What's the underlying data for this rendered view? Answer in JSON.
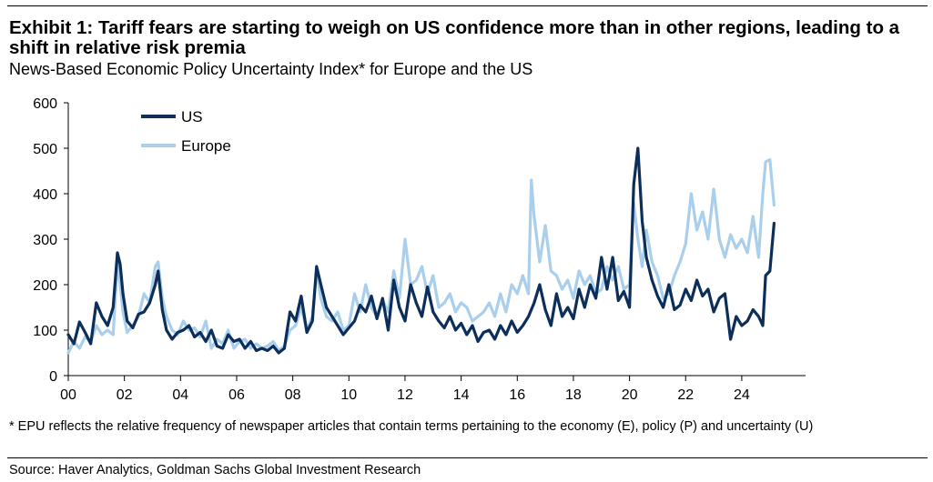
{
  "header": {
    "title": "Exhibit 1: Tariff fears are starting to weigh on US confidence more than in other regions, leading to a shift in relative risk premia",
    "subtitle": "News-Based Economic Policy Uncertainty Index* for Europe and the US"
  },
  "footer": {
    "note": "* EPU reflects the relative frequency of newspaper articles that contain terms pertaining to the economy (E), policy (P) and uncertainty (U)",
    "source": "Source: Haver Analytics, Goldman Sachs Global Investment Research"
  },
  "chart_data": {
    "type": "line",
    "ylim": [
      0,
      600
    ],
    "yticks": [
      "0",
      "100",
      "200",
      "300",
      "400",
      "500",
      "600"
    ],
    "xlim": [
      2000,
      2025.3
    ],
    "xticks": [
      "00",
      "02",
      "04",
      "06",
      "08",
      "10",
      "12",
      "14",
      "16",
      "18",
      "20",
      "22",
      "24"
    ],
    "legend_position": "top-left",
    "grid": false,
    "colors": {
      "US": "#0b2e5b",
      "Europe": "#a9cfec"
    },
    "series": [
      {
        "name": "US",
        "points": [
          [
            2000.0,
            90
          ],
          [
            2000.2,
            70
          ],
          [
            2000.4,
            118
          ],
          [
            2000.6,
            95
          ],
          [
            2000.8,
            70
          ],
          [
            2001.0,
            160
          ],
          [
            2001.2,
            130
          ],
          [
            2001.4,
            110
          ],
          [
            2001.6,
            150
          ],
          [
            2001.75,
            270
          ],
          [
            2001.85,
            245
          ],
          [
            2001.95,
            180
          ],
          [
            2002.1,
            120
          ],
          [
            2002.3,
            105
          ],
          [
            2002.5,
            135
          ],
          [
            2002.7,
            140
          ],
          [
            2002.9,
            160
          ],
          [
            2003.1,
            200
          ],
          [
            2003.2,
            230
          ],
          [
            2003.35,
            145
          ],
          [
            2003.5,
            100
          ],
          [
            2003.7,
            80
          ],
          [
            2003.9,
            95
          ],
          [
            2004.1,
            100
          ],
          [
            2004.3,
            110
          ],
          [
            2004.5,
            85
          ],
          [
            2004.7,
            95
          ],
          [
            2004.9,
            75
          ],
          [
            2005.1,
            100
          ],
          [
            2005.3,
            65
          ],
          [
            2005.5,
            60
          ],
          [
            2005.7,
            90
          ],
          [
            2005.9,
            75
          ],
          [
            2006.1,
            80
          ],
          [
            2006.3,
            60
          ],
          [
            2006.5,
            75
          ],
          [
            2006.7,
            55
          ],
          [
            2006.9,
            60
          ],
          [
            2007.1,
            55
          ],
          [
            2007.3,
            65
          ],
          [
            2007.5,
            50
          ],
          [
            2007.7,
            60
          ],
          [
            2007.9,
            140
          ],
          [
            2008.1,
            120
          ],
          [
            2008.3,
            175
          ],
          [
            2008.5,
            95
          ],
          [
            2008.7,
            120
          ],
          [
            2008.85,
            240
          ],
          [
            2009.0,
            200
          ],
          [
            2009.2,
            150
          ],
          [
            2009.4,
            130
          ],
          [
            2009.6,
            110
          ],
          [
            2009.8,
            90
          ],
          [
            2010.0,
            105
          ],
          [
            2010.2,
            120
          ],
          [
            2010.4,
            155
          ],
          [
            2010.6,
            140
          ],
          [
            2010.8,
            175
          ],
          [
            2011.0,
            125
          ],
          [
            2011.2,
            170
          ],
          [
            2011.4,
            100
          ],
          [
            2011.6,
            210
          ],
          [
            2011.8,
            150
          ],
          [
            2012.0,
            120
          ],
          [
            2012.2,
            200
          ],
          [
            2012.4,
            160
          ],
          [
            2012.6,
            130
          ],
          [
            2012.8,
            195
          ],
          [
            2013.0,
            140
          ],
          [
            2013.2,
            120
          ],
          [
            2013.4,
            105
          ],
          [
            2013.6,
            130
          ],
          [
            2013.8,
            100
          ],
          [
            2014.0,
            115
          ],
          [
            2014.2,
            90
          ],
          [
            2014.4,
            110
          ],
          [
            2014.6,
            75
          ],
          [
            2014.8,
            95
          ],
          [
            2015.0,
            100
          ],
          [
            2015.2,
            80
          ],
          [
            2015.4,
            110
          ],
          [
            2015.6,
            90
          ],
          [
            2015.8,
            120
          ],
          [
            2016.0,
            95
          ],
          [
            2016.2,
            110
          ],
          [
            2016.4,
            130
          ],
          [
            2016.6,
            160
          ],
          [
            2016.8,
            200
          ],
          [
            2017.0,
            145
          ],
          [
            2017.2,
            110
          ],
          [
            2017.4,
            180
          ],
          [
            2017.6,
            130
          ],
          [
            2017.8,
            150
          ],
          [
            2018.0,
            125
          ],
          [
            2018.2,
            190
          ],
          [
            2018.4,
            150
          ],
          [
            2018.6,
            200
          ],
          [
            2018.8,
            170
          ],
          [
            2019.0,
            260
          ],
          [
            2019.2,
            190
          ],
          [
            2019.4,
            260
          ],
          [
            2019.6,
            165
          ],
          [
            2019.8,
            185
          ],
          [
            2020.0,
            150
          ],
          [
            2020.15,
            420
          ],
          [
            2020.3,
            500
          ],
          [
            2020.45,
            340
          ],
          [
            2020.6,
            260
          ],
          [
            2020.8,
            210
          ],
          [
            2021.0,
            175
          ],
          [
            2021.2,
            150
          ],
          [
            2021.4,
            200
          ],
          [
            2021.6,
            145
          ],
          [
            2021.8,
            155
          ],
          [
            2022.0,
            190
          ],
          [
            2022.2,
            165
          ],
          [
            2022.4,
            210
          ],
          [
            2022.6,
            175
          ],
          [
            2022.8,
            190
          ],
          [
            2023.0,
            140
          ],
          [
            2023.2,
            170
          ],
          [
            2023.4,
            180
          ],
          [
            2023.6,
            80
          ],
          [
            2023.8,
            130
          ],
          [
            2024.0,
            110
          ],
          [
            2024.2,
            120
          ],
          [
            2024.4,
            145
          ],
          [
            2024.6,
            130
          ],
          [
            2024.75,
            110
          ],
          [
            2024.85,
            220
          ],
          [
            2025.0,
            230
          ],
          [
            2025.15,
            335
          ]
        ]
      },
      {
        "name": "Europe",
        "points": [
          [
            2000.0,
            50
          ],
          [
            2000.2,
            75
          ],
          [
            2000.4,
            60
          ],
          [
            2000.6,
            85
          ],
          [
            2000.8,
            75
          ],
          [
            2001.0,
            110
          ],
          [
            2001.2,
            90
          ],
          [
            2001.4,
            100
          ],
          [
            2001.6,
            90
          ],
          [
            2001.75,
            250
          ],
          [
            2001.85,
            200
          ],
          [
            2001.95,
            140
          ],
          [
            2002.1,
            95
          ],
          [
            2002.3,
            110
          ],
          [
            2002.5,
            130
          ],
          [
            2002.7,
            180
          ],
          [
            2002.9,
            160
          ],
          [
            2003.1,
            240
          ],
          [
            2003.2,
            250
          ],
          [
            2003.35,
            170
          ],
          [
            2003.5,
            130
          ],
          [
            2003.7,
            100
          ],
          [
            2003.9,
            90
          ],
          [
            2004.1,
            120
          ],
          [
            2004.3,
            100
          ],
          [
            2004.5,
            105
          ],
          [
            2004.7,
            85
          ],
          [
            2004.9,
            120
          ],
          [
            2005.1,
            60
          ],
          [
            2005.3,
            80
          ],
          [
            2005.5,
            70
          ],
          [
            2005.7,
            100
          ],
          [
            2005.9,
            60
          ],
          [
            2006.1,
            75
          ],
          [
            2006.3,
            80
          ],
          [
            2006.5,
            60
          ],
          [
            2006.7,
            70
          ],
          [
            2006.9,
            60
          ],
          [
            2007.1,
            65
          ],
          [
            2007.3,
            75
          ],
          [
            2007.5,
            55
          ],
          [
            2007.7,
            65
          ],
          [
            2007.9,
            100
          ],
          [
            2008.1,
            110
          ],
          [
            2008.3,
            150
          ],
          [
            2008.5,
            100
          ],
          [
            2008.7,
            130
          ],
          [
            2008.85,
            230
          ],
          [
            2009.0,
            170
          ],
          [
            2009.2,
            130
          ],
          [
            2009.4,
            120
          ],
          [
            2009.6,
            140
          ],
          [
            2009.8,
            100
          ],
          [
            2010.0,
            110
          ],
          [
            2010.2,
            180
          ],
          [
            2010.4,
            140
          ],
          [
            2010.6,
            200
          ],
          [
            2010.8,
            150
          ],
          [
            2011.0,
            130
          ],
          [
            2011.2,
            165
          ],
          [
            2011.4,
            140
          ],
          [
            2011.6,
            230
          ],
          [
            2011.8,
            170
          ],
          [
            2012.0,
            300
          ],
          [
            2012.2,
            200
          ],
          [
            2012.4,
            210
          ],
          [
            2012.6,
            240
          ],
          [
            2012.8,
            180
          ],
          [
            2013.0,
            220
          ],
          [
            2013.2,
            150
          ],
          [
            2013.4,
            160
          ],
          [
            2013.6,
            180
          ],
          [
            2013.8,
            140
          ],
          [
            2014.0,
            160
          ],
          [
            2014.2,
            150
          ],
          [
            2014.4,
            120
          ],
          [
            2014.6,
            130
          ],
          [
            2014.8,
            140
          ],
          [
            2015.0,
            160
          ],
          [
            2015.2,
            130
          ],
          [
            2015.4,
            180
          ],
          [
            2015.6,
            140
          ],
          [
            2015.8,
            200
          ],
          [
            2016.0,
            180
          ],
          [
            2016.2,
            220
          ],
          [
            2016.4,
            180
          ],
          [
            2016.5,
            430
          ],
          [
            2016.6,
            350
          ],
          [
            2016.8,
            250
          ],
          [
            2017.0,
            330
          ],
          [
            2017.2,
            230
          ],
          [
            2017.4,
            220
          ],
          [
            2017.6,
            190
          ],
          [
            2017.8,
            210
          ],
          [
            2018.0,
            170
          ],
          [
            2018.2,
            230
          ],
          [
            2018.4,
            200
          ],
          [
            2018.6,
            220
          ],
          [
            2018.8,
            180
          ],
          [
            2019.0,
            190
          ],
          [
            2019.2,
            240
          ],
          [
            2019.4,
            210
          ],
          [
            2019.6,
            240
          ],
          [
            2019.8,
            190
          ],
          [
            2020.0,
            200
          ],
          [
            2020.15,
            380
          ],
          [
            2020.3,
            300
          ],
          [
            2020.45,
            240
          ],
          [
            2020.6,
            320
          ],
          [
            2020.8,
            250
          ],
          [
            2021.0,
            220
          ],
          [
            2021.2,
            170
          ],
          [
            2021.4,
            180
          ],
          [
            2021.6,
            220
          ],
          [
            2021.8,
            250
          ],
          [
            2022.0,
            290
          ],
          [
            2022.2,
            400
          ],
          [
            2022.4,
            320
          ],
          [
            2022.6,
            360
          ],
          [
            2022.8,
            300
          ],
          [
            2023.0,
            410
          ],
          [
            2023.2,
            300
          ],
          [
            2023.4,
            260
          ],
          [
            2023.6,
            310
          ],
          [
            2023.8,
            280
          ],
          [
            2024.0,
            300
          ],
          [
            2024.2,
            270
          ],
          [
            2024.4,
            350
          ],
          [
            2024.6,
            260
          ],
          [
            2024.75,
            400
          ],
          [
            2024.85,
            470
          ],
          [
            2025.0,
            475
          ],
          [
            2025.15,
            375
          ]
        ]
      }
    ]
  }
}
